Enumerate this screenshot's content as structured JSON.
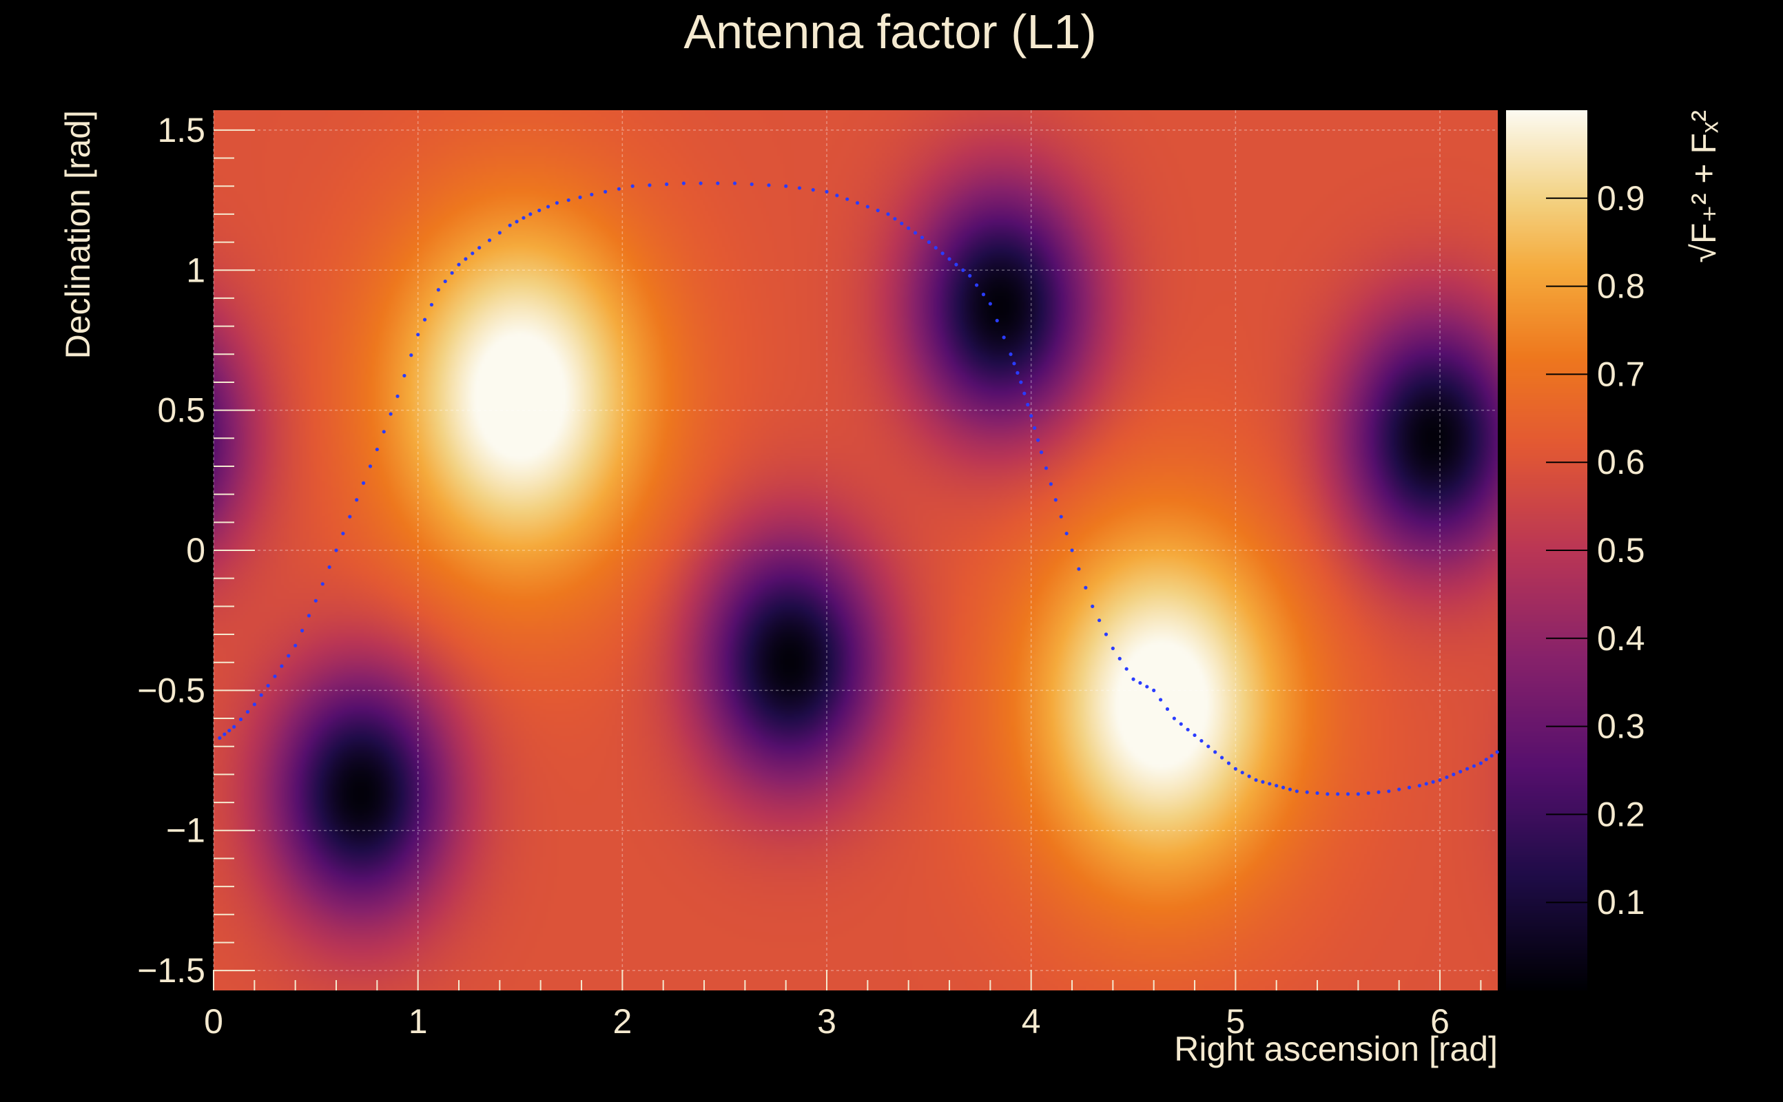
{
  "chart_data": {
    "type": "heatmap",
    "title": "Antenna factor (L1)",
    "xlabel": "Right ascension [rad]",
    "ylabel": "Declination [rad]",
    "zlabel": "√F₊² + Fₓ²",
    "xlim": [
      0,
      6.283
    ],
    "ylim": [
      -1.571,
      1.571
    ],
    "zlim": [
      0,
      1
    ],
    "x_ticks": [
      0,
      1,
      2,
      3,
      4,
      5,
      6
    ],
    "x_tick_labels": [
      "0",
      "1",
      "2",
      "3",
      "4",
      "5",
      "6"
    ],
    "y_ticks": [
      -1.5,
      -1,
      -0.5,
      0,
      0.5,
      1,
      1.5
    ],
    "y_tick_labels": [
      "−1.5",
      "−1",
      "−0.5",
      "0",
      "0.5",
      "1",
      "1.5"
    ],
    "z_ticks": [
      0.1,
      0.2,
      0.3,
      0.4,
      0.5,
      0.6,
      0.7,
      0.8,
      0.9
    ],
    "z_tick_labels": [
      "0.1",
      "0.2",
      "0.3",
      "0.4",
      "0.5",
      "0.6",
      "0.7",
      "0.8",
      "0.9"
    ],
    "grid": true,
    "colormap": "inferno",
    "maxima": [
      {
        "ra": 1.5,
        "dec": 0.55,
        "value": 1.0
      },
      {
        "ra": 4.64,
        "dec": -0.55,
        "value": 1.0
      }
    ],
    "minima": [
      {
        "ra": 0.72,
        "dec": -0.87,
        "value": 0.0
      },
      {
        "ra": 2.82,
        "dec": -0.4,
        "value": 0.0
      },
      {
        "ra": 3.85,
        "dec": 0.87,
        "value": 0.0
      },
      {
        "ra": 5.97,
        "dec": 0.4,
        "value": 0.0
      }
    ],
    "overlay_curve": {
      "type": "dotted-line",
      "color": "#2a3cff",
      "points": [
        [
          0.03,
          -0.67
        ],
        [
          0.1,
          -0.63
        ],
        [
          0.2,
          -0.55
        ],
        [
          0.3,
          -0.45
        ],
        [
          0.4,
          -0.34
        ],
        [
          0.5,
          -0.18
        ],
        [
          0.6,
          0.0
        ],
        [
          0.7,
          0.18
        ],
        [
          0.8,
          0.36
        ],
        [
          0.9,
          0.55
        ],
        [
          1.0,
          0.77
        ],
        [
          1.1,
          0.93
        ],
        [
          1.2,
          1.02
        ],
        [
          1.3,
          1.08
        ],
        [
          1.45,
          1.16
        ],
        [
          1.55,
          1.2
        ],
        [
          1.68,
          1.24
        ],
        [
          1.85,
          1.27
        ],
        [
          2.05,
          1.3
        ],
        [
          2.3,
          1.31
        ],
        [
          2.55,
          1.31
        ],
        [
          2.8,
          1.3
        ],
        [
          3.0,
          1.28
        ],
        [
          3.15,
          1.24
        ],
        [
          3.3,
          1.2
        ],
        [
          3.4,
          1.15
        ],
        [
          3.5,
          1.1
        ],
        [
          3.6,
          1.04
        ],
        [
          3.7,
          0.98
        ],
        [
          3.8,
          0.88
        ],
        [
          3.9,
          0.7
        ],
        [
          3.95,
          0.6
        ],
        [
          4.0,
          0.48
        ],
        [
          4.05,
          0.35
        ],
        [
          4.12,
          0.18
        ],
        [
          4.2,
          0.0
        ],
        [
          4.3,
          -0.2
        ],
        [
          4.4,
          -0.35
        ],
        [
          4.5,
          -0.46
        ],
        [
          4.6,
          -0.5
        ],
        [
          4.7,
          -0.6
        ],
        [
          4.8,
          -0.66
        ],
        [
          4.9,
          -0.72
        ],
        [
          5.0,
          -0.78
        ],
        [
          5.1,
          -0.82
        ],
        [
          5.2,
          -0.84
        ],
        [
          5.3,
          -0.86
        ],
        [
          5.45,
          -0.87
        ],
        [
          5.6,
          -0.87
        ],
        [
          5.75,
          -0.86
        ],
        [
          5.9,
          -0.84
        ],
        [
          6.0,
          -0.82
        ],
        [
          6.1,
          -0.79
        ],
        [
          6.2,
          -0.76
        ],
        [
          6.28,
          -0.72
        ]
      ]
    }
  }
}
